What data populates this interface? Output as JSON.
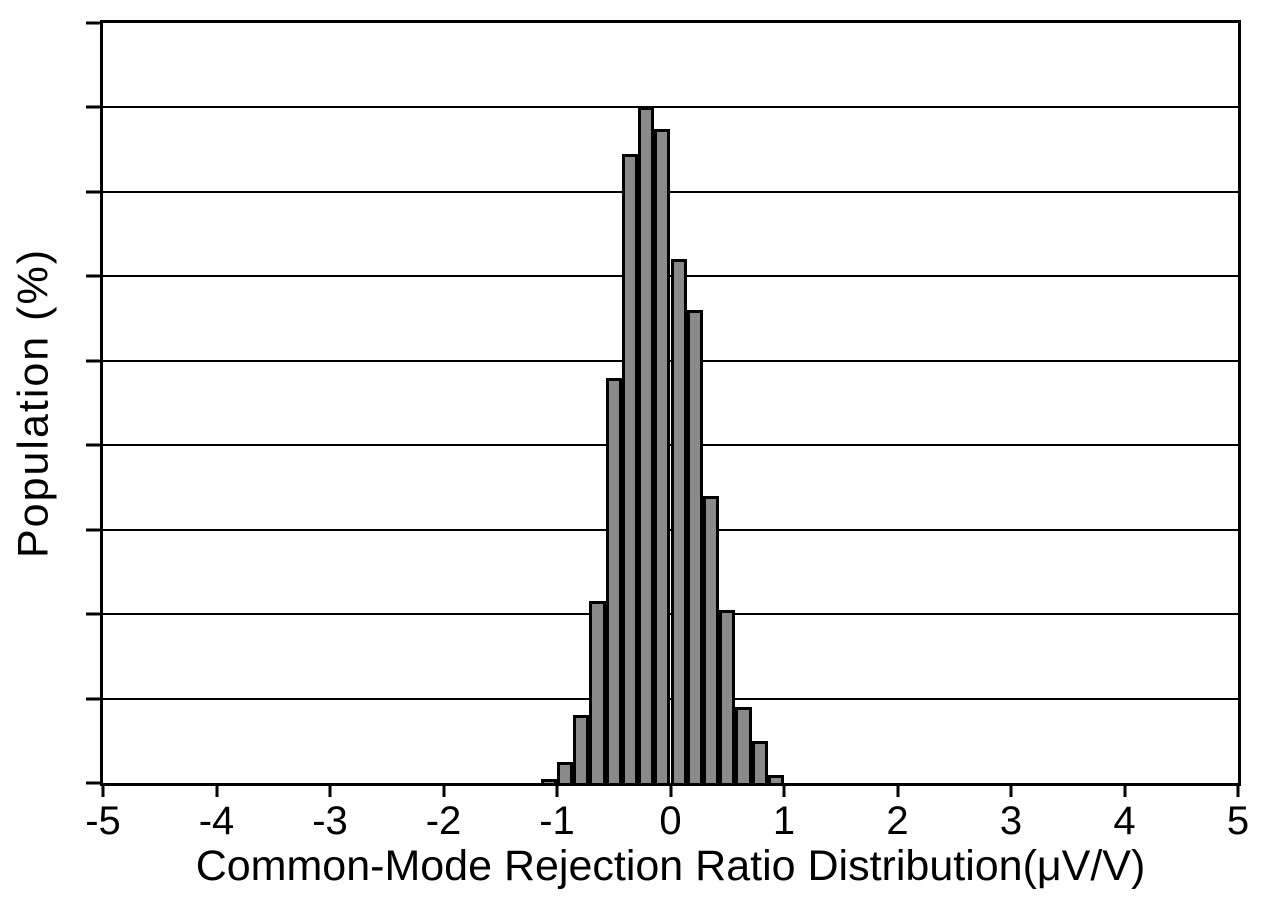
{
  "chart_data": {
    "type": "bar",
    "subtype": "histogram",
    "title": "",
    "xlabel": "Common-Mode Rejection Ratio Distribution(μV/V)",
    "ylabel": "Population (%)",
    "xlim": [
      -5,
      5
    ],
    "ylim": [
      0,
      18
    ],
    "grid": "horizontal",
    "y_gridline_step": 2,
    "y_tick_labels_shown": false,
    "legend": "none",
    "bar_fill_color": "#8a8a8a",
    "bar_edge_color": "#000000",
    "axis_color": "#000000",
    "background_color": "#ffffff",
    "x_ticks": [
      "-5",
      "-4",
      "-3",
      "-2",
      "-1",
      "0",
      "1",
      "2",
      "3",
      "4",
      "5"
    ],
    "bin_edges": [
      -1.143,
      -1.0,
      -0.857,
      -0.714,
      -0.571,
      -0.429,
      -0.286,
      -0.143,
      0.0,
      0.143,
      0.286,
      0.429,
      0.571,
      0.714,
      0.857,
      1.0
    ],
    "values_percent": [
      0.1,
      0.5,
      1.6,
      4.3,
      9.6,
      14.9,
      16.0,
      15.5,
      12.4,
      11.2,
      6.8,
      4.1,
      1.8,
      1.0,
      0.2
    ]
  }
}
